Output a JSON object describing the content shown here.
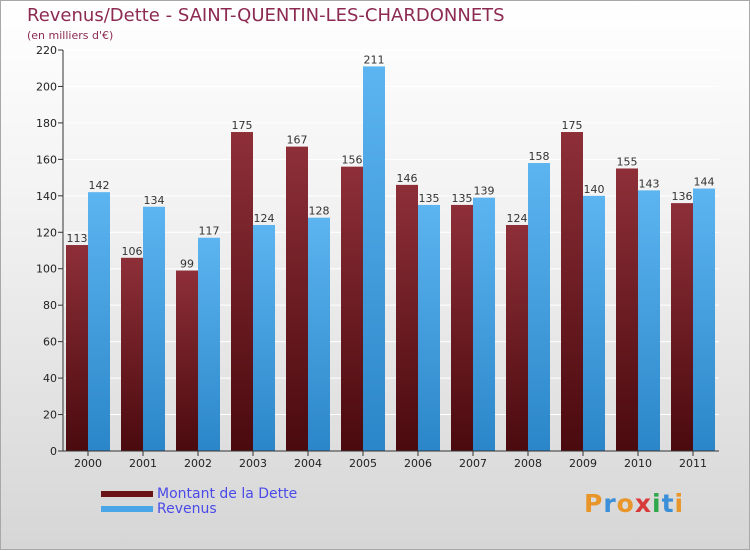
{
  "chart_data": {
    "type": "bar",
    "title": "Revenus/Dette - SAINT-QUENTIN-LES-CHARDONNETS",
    "subtitle": "(en milliers d'€)",
    "categories": [
      "2000",
      "2001",
      "2002",
      "2003",
      "2004",
      "2005",
      "2006",
      "2007",
      "2008",
      "2009",
      "2010",
      "2011"
    ],
    "series": [
      {
        "name": "Montant de la Dette",
        "color": "#7a1f24",
        "values": [
          113,
          106,
          99,
          175,
          167,
          156,
          146,
          135,
          124,
          175,
          155,
          136
        ]
      },
      {
        "name": "Revenus",
        "color": "#4aa6e6",
        "values": [
          142,
          134,
          117,
          124,
          128,
          211,
          135,
          139,
          158,
          140,
          143,
          144
        ]
      }
    ],
    "ylim": [
      0,
      220
    ],
    "yticks": [
      0,
      20,
      40,
      60,
      80,
      100,
      120,
      140,
      160,
      180,
      200,
      220
    ],
    "grid": true,
    "legend": "bottom-left"
  },
  "logo": {
    "text": "Proxiti"
  }
}
